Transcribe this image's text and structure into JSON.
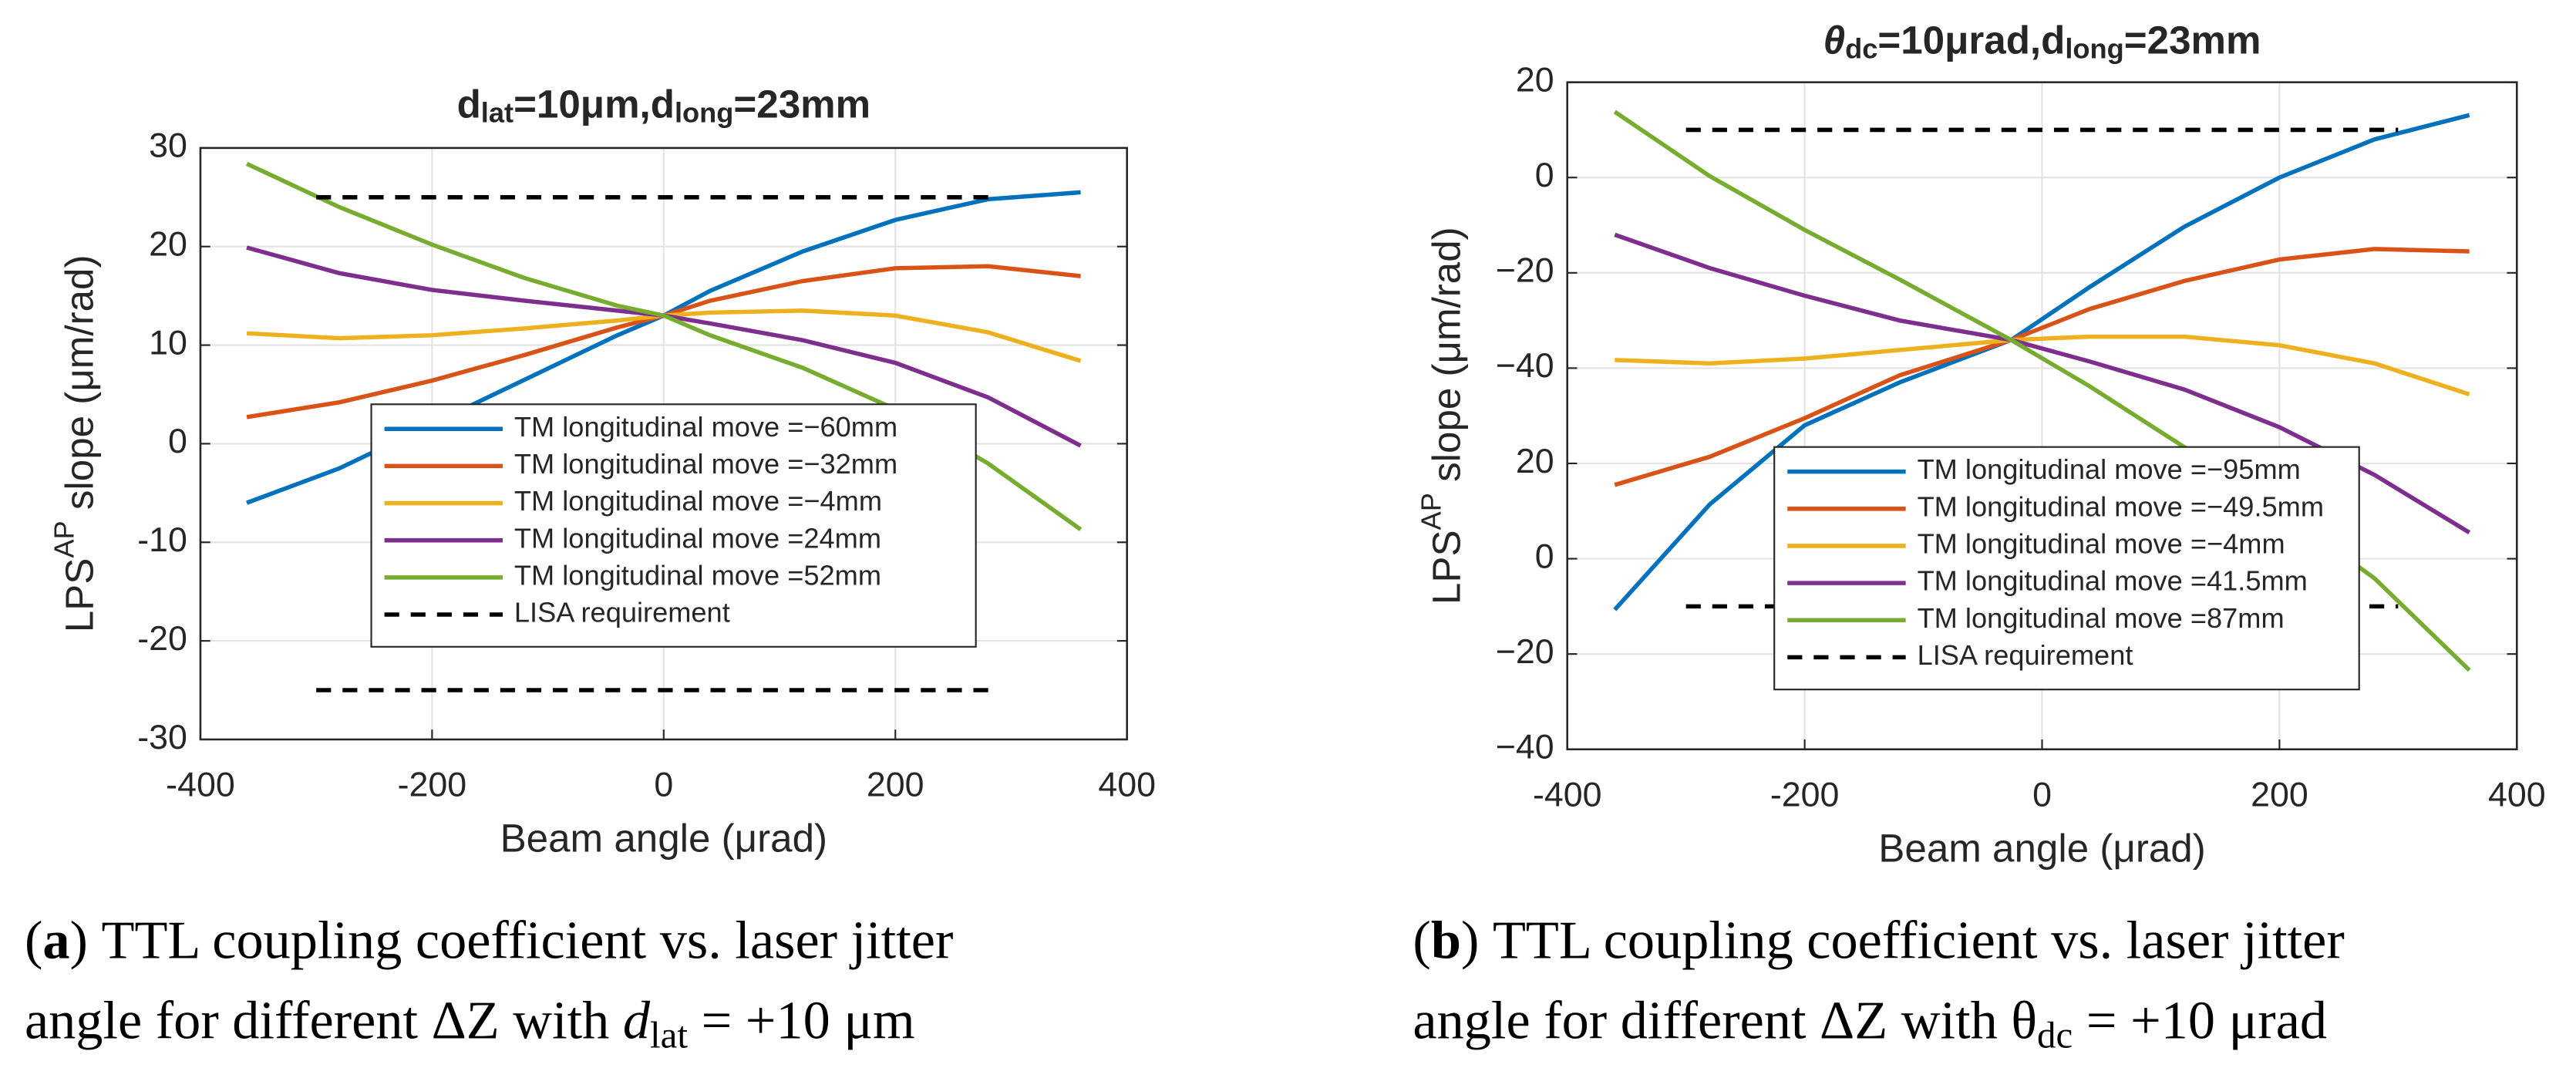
{
  "chart_data": [
    {
      "type": "line",
      "title": [
        "d",
        "lat",
        "=10μm,d",
        "long",
        "=23mm"
      ],
      "xlabel": "Beam angle (μrad)",
      "ylabel": [
        "LPS",
        "AP",
        " slope (μm/rad)"
      ],
      "x": [
        -360,
        -280,
        -200,
        -120,
        -40,
        0,
        40,
        120,
        200,
        280,
        360
      ],
      "xlim": [
        -400,
        400
      ],
      "xticks": [
        -400,
        -200,
        0,
        200,
        400
      ],
      "ylim": [
        -30,
        30
      ],
      "yticks": [
        -30,
        -20,
        -10,
        0,
        10,
        20,
        30
      ],
      "grid": true,
      "series": [
        {
          "name": "TM longitudinal move =−60mm",
          "color": "#0072bd",
          "values": [
            -6,
            -2.5,
            2,
            6.5,
            11,
            13,
            15.5,
            19.5,
            22.7,
            24.8,
            25.5
          ]
        },
        {
          "name": "TM longitudinal move =−32mm",
          "color": "#d95319",
          "values": [
            2.7,
            4.2,
            6.4,
            9,
            11.8,
            13,
            14.5,
            16.5,
            17.8,
            18,
            17
          ]
        },
        {
          "name": "TM longitudinal move =−4mm",
          "color": "#edb120",
          "values": [
            11.2,
            10.7,
            11,
            11.7,
            12.5,
            13,
            13.3,
            13.5,
            13,
            11.3,
            8.4
          ]
        },
        {
          "name": "TM longitudinal move =24mm",
          "color": "#7e2f8e",
          "values": [
            19.9,
            17.3,
            15.6,
            14.5,
            13.5,
            13,
            12.2,
            10.5,
            8.2,
            4.7,
            -0.2
          ]
        },
        {
          "name": "TM longitudinal move =52mm",
          "color": "#77ac30",
          "values": [
            28.4,
            24,
            20.2,
            16.8,
            14,
            13,
            11,
            7.7,
            3.5,
            -2,
            -8.7
          ]
        },
        {
          "name": "LISA requirement",
          "color": "#000000",
          "dashed": true,
          "x": [
            -300,
            290,
            null,
            -300,
            290
          ],
          "values": [
            25,
            25,
            null,
            -25,
            -25
          ]
        }
      ],
      "caption": {
        "label": "a",
        "line1": "TTL coupling coefficient vs.  laser jitter",
        "line2": "angle for different ΔZ with ",
        "symbol": "d",
        "sub": "lat",
        "rest": " = +10 μm"
      }
    },
    {
      "type": "line",
      "title": [
        "θ",
        "dc",
        "=10μrad,d",
        "long",
        "=23mm"
      ],
      "xlabel": "Beam angle (μrad)",
      "ylabel": [
        "LPS",
        "AP",
        " slope (μm/rad)"
      ],
      "x": [
        -360,
        -280,
        -200,
        -120,
        -26,
        40,
        120,
        200,
        280,
        360
      ],
      "xlim": [
        -400,
        400
      ],
      "xticks": [
        -400,
        -200,
        0,
        200,
        400
      ],
      "ylim": [
        -120,
        20
      ],
      "yticks": [
        20,
        0,
        {
          "value": -20,
          "label": "−20"
        },
        {
          "value": -40,
          "label": "−40"
        },
        {
          "value": -60,
          "label": "20"
        },
        {
          "value": -80,
          "label": "0"
        },
        {
          "value": -100,
          "label": "−20"
        },
        {
          "value": -120,
          "label": "−40"
        }
      ],
      "grid": true,
      "series": [
        {
          "name": "TM longitudinal move =−95mm",
          "color": "#0072bd",
          "values": [
            -90.7,
            -68.6,
            -52,
            -43,
            -34.1,
            -23,
            -10.3,
            0,
            8,
            13.1
          ]
        },
        {
          "name": "TM longitudinal move =−49.5mm",
          "color": "#d95319",
          "values": [
            -64.5,
            -58.6,
            -50.5,
            -41.5,
            -34.1,
            -27.6,
            -21.7,
            -17.2,
            -15,
            -15.5
          ]
        },
        {
          "name": "TM longitudinal move =−4mm",
          "color": "#edb120",
          "values": [
            -38.3,
            -39,
            -38,
            -36.2,
            -34.1,
            -33.4,
            -33.4,
            -35.2,
            -39,
            -45.5
          ]
        },
        {
          "name": "TM longitudinal move =41.5mm",
          "color": "#7e2f8e",
          "values": [
            -12,
            -19,
            -24.8,
            -30,
            -34.1,
            -38.6,
            -44.5,
            -52.4,
            -62.4,
            -74.5
          ]
        },
        {
          "name": "TM longitudinal move =87mm",
          "color": "#77ac30",
          "values": [
            13.8,
            0.3,
            -11,
            -21.4,
            -34.1,
            -43.8,
            -56.6,
            -69.7,
            -84.1,
            -103.4
          ]
        },
        {
          "name": "LISA requirement",
          "color": "#000000",
          "dashed": true,
          "x": [
            -300,
            300,
            null,
            -300,
            300
          ],
          "values": [
            10,
            10,
            null,
            -90,
            -90
          ]
        }
      ],
      "caption": {
        "label": "b",
        "line1": "TTL coupling coefficient vs.  laser jitter",
        "line2": "angle for different ΔZ with ",
        "symbol": "θ",
        "sub": "dc",
        "rest": " = +10 μrad"
      }
    }
  ]
}
